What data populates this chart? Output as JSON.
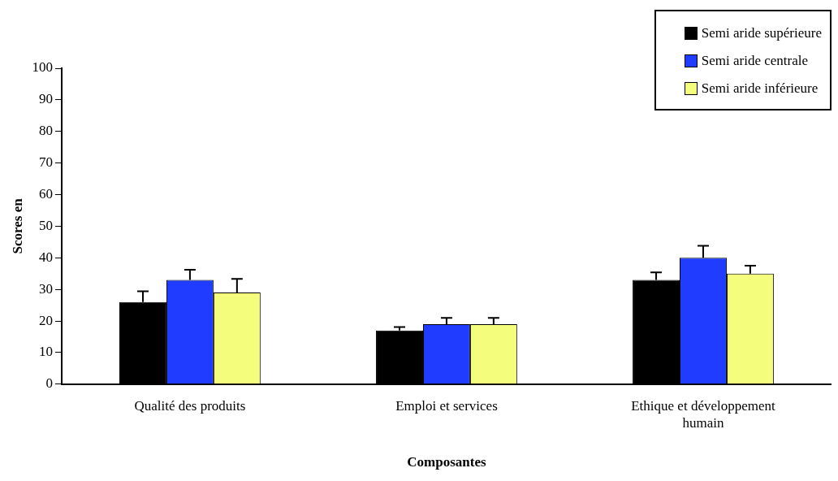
{
  "chart_data": {
    "type": "bar",
    "xlabel": "Composantes",
    "ylabel": "Scores en",
    "categories": [
      "Qualité des produits",
      "Emploi et services",
      "Ethique et développement humain"
    ],
    "series": [
      {
        "name": "Semi aride supérieure",
        "color": "#000000",
        "values": [
          26,
          17,
          33
        ],
        "errors": [
          [
            26,
            29.4
          ],
          [
            17,
            18.1
          ],
          [
            33,
            35.4
          ]
        ]
      },
      {
        "name": "Semi aride centrale",
        "color": "#1f3cff",
        "values": [
          33,
          19,
          40
        ],
        "errors": [
          [
            33,
            36.2
          ],
          [
            19,
            21
          ],
          [
            40,
            43.8
          ]
        ]
      },
      {
        "name": "Semi aride inférieure",
        "color": "#f4fd7c",
        "values": [
          29,
          19,
          35
        ],
        "errors": [
          [
            29,
            33.3
          ],
          [
            19,
            21
          ],
          [
            35,
            37.5
          ]
        ]
      }
    ],
    "ylim": [
      0,
      100
    ],
    "yticks": [
      0,
      10,
      20,
      30,
      40,
      50,
      60,
      70,
      80,
      90,
      100
    ],
    "grid": false,
    "legend": "top right"
  }
}
